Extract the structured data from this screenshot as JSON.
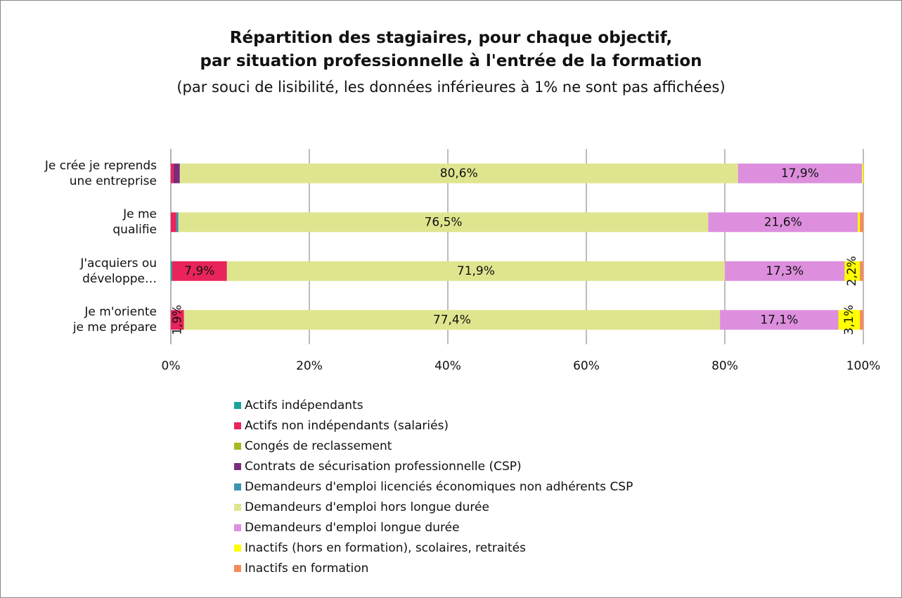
{
  "chart_data": {
    "type": "stacked_bar_horizontal",
    "title": "Répartition des stagiaires, pour chaque objectif,\npar situation professionnelle à l'entrée de la formation",
    "subtitle": "(par souci de lisibilité, les données inférieures à 1% ne sont pas affichées)",
    "categories": [
      "Je crée je reprends\nune entreprise",
      "Je me\nqualifie",
      "J'acquiers ou\ndéveloppe…",
      "Je m'oriente\nje me prépare"
    ],
    "series": [
      {
        "name": "Actifs indépendants",
        "color": "#1aa39a",
        "values": [
          0,
          0,
          0.2,
          0
        ],
        "value_labels": [
          null,
          null,
          null,
          null
        ]
      },
      {
        "name": "Actifs non indépendants (salariés)",
        "color": "#e8245a",
        "values": [
          0.4,
          0.8,
          7.9,
          1.9
        ],
        "value_labels": [
          null,
          null,
          "7,9%",
          "1,9%"
        ]
      },
      {
        "name": "Congés de reclassement",
        "color": "#a8b820",
        "values": [
          0,
          0,
          0,
          0
        ],
        "value_labels": [
          null,
          null,
          null,
          null
        ]
      },
      {
        "name": "Contrats de sécurisation professionnelle (CSP)",
        "color": "#7b2a7e",
        "values": [
          0.9,
          0,
          0,
          0
        ],
        "value_labels": [
          null,
          null,
          null,
          null
        ]
      },
      {
        "name": "Demandeurs d'emploi licenciés économiques non adhérents CSP",
        "color": "#3a95b0",
        "values": [
          0,
          0.3,
          0,
          0
        ],
        "value_labels": [
          null,
          null,
          null,
          null
        ]
      },
      {
        "name": "Demandeurs d'emploi hors longue durée",
        "color": "#dfe58e",
        "values": [
          80.6,
          76.5,
          71.9,
          77.4
        ],
        "value_labels": [
          "80,6%",
          "76,5%",
          "71,9%",
          "77,4%"
        ]
      },
      {
        "name": "Demandeurs d'emploi longue durée",
        "color": "#dd8fdd",
        "values": [
          17.9,
          21.6,
          17.3,
          17.1
        ],
        "value_labels": [
          "17,9%",
          "21,6%",
          "17,3%",
          "17,1%"
        ]
      },
      {
        "name": "Inactifs (hors en formation), scolaires, retraités",
        "color": "#ffff00",
        "values": [
          0.2,
          0.3,
          2.2,
          3.1
        ],
        "value_labels": [
          null,
          null,
          "2,2%",
          "3,1%"
        ]
      },
      {
        "name": "Inactifs en formation",
        "color": "#f58c5a",
        "values": [
          0,
          0.5,
          0.5,
          0.5
        ],
        "value_labels": [
          null,
          null,
          null,
          null
        ]
      }
    ],
    "xlim": [
      0,
      100
    ],
    "xticks": [
      {
        "value": 0,
        "label": "0%"
      },
      {
        "value": 20,
        "label": "20%"
      },
      {
        "value": 40,
        "label": "40%"
      },
      {
        "value": 60,
        "label": "60%"
      },
      {
        "value": 80,
        "label": "80%"
      },
      {
        "value": 100,
        "label": "100%"
      }
    ],
    "grid": true,
    "legend": "bottom"
  }
}
